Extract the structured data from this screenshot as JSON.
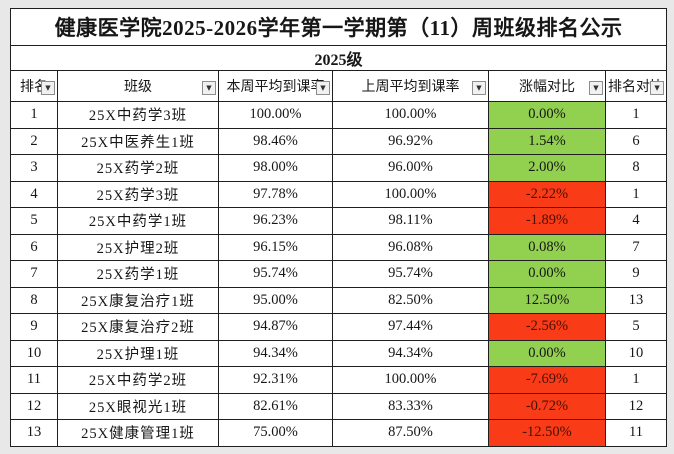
{
  "title": "健康医学院2025-2026学年第一学期第（11）周班级排名公示",
  "group_header": "2025级",
  "columns": {
    "rank": "排名",
    "class_name": "班级",
    "this_week": "本周平均到课率",
    "last_week": "上周平均到课率",
    "change": "涨幅对比",
    "rank_compare": "排名对比"
  },
  "icons": {
    "filter_dropdown": "▼"
  },
  "colors": {
    "positive_bg": "#92d050",
    "negative_bg": "#f93b17"
  },
  "rows": [
    {
      "rank": "1",
      "class_name": "25X中药学3班",
      "this_week": "100.00%",
      "last_week": "100.00%",
      "change": "0.00%",
      "trend": "positive",
      "rank_compare": "1"
    },
    {
      "rank": "2",
      "class_name": "25X中医养生1班",
      "this_week": "98.46%",
      "last_week": "96.92%",
      "change": "1.54%",
      "trend": "positive",
      "rank_compare": "6"
    },
    {
      "rank": "3",
      "class_name": "25X药学2班",
      "this_week": "98.00%",
      "last_week": "96.00%",
      "change": "2.00%",
      "trend": "positive",
      "rank_compare": "8"
    },
    {
      "rank": "4",
      "class_name": "25X药学3班",
      "this_week": "97.78%",
      "last_week": "100.00%",
      "change": "-2.22%",
      "trend": "negative",
      "rank_compare": "1"
    },
    {
      "rank": "5",
      "class_name": "25X中药学1班",
      "this_week": "96.23%",
      "last_week": "98.11%",
      "change": "-1.89%",
      "trend": "negative",
      "rank_compare": "4"
    },
    {
      "rank": "6",
      "class_name": "25X护理2班",
      "this_week": "96.15%",
      "last_week": "96.08%",
      "change": "0.08%",
      "trend": "positive",
      "rank_compare": "7"
    },
    {
      "rank": "7",
      "class_name": "25X药学1班",
      "this_week": "95.74%",
      "last_week": "95.74%",
      "change": "0.00%",
      "trend": "positive",
      "rank_compare": "9"
    },
    {
      "rank": "8",
      "class_name": "25X康复治疗1班",
      "this_week": "95.00%",
      "last_week": "82.50%",
      "change": "12.50%",
      "trend": "positive",
      "rank_compare": "13"
    },
    {
      "rank": "9",
      "class_name": "25X康复治疗2班",
      "this_week": "94.87%",
      "last_week": "97.44%",
      "change": "-2.56%",
      "trend": "negative",
      "rank_compare": "5"
    },
    {
      "rank": "10",
      "class_name": "25X护理1班",
      "this_week": "94.34%",
      "last_week": "94.34%",
      "change": "0.00%",
      "trend": "positive",
      "rank_compare": "10"
    },
    {
      "rank": "11",
      "class_name": "25X中药学2班",
      "this_week": "92.31%",
      "last_week": "100.00%",
      "change": "-7.69%",
      "trend": "negative",
      "rank_compare": "1"
    },
    {
      "rank": "12",
      "class_name": "25X眼视光1班",
      "this_week": "82.61%",
      "last_week": "83.33%",
      "change": "-0.72%",
      "trend": "negative",
      "rank_compare": "12"
    },
    {
      "rank": "13",
      "class_name": "25X健康管理1班",
      "this_week": "75.00%",
      "last_week": "87.50%",
      "change": "-12.50%",
      "trend": "negative",
      "rank_compare": "11"
    }
  ]
}
